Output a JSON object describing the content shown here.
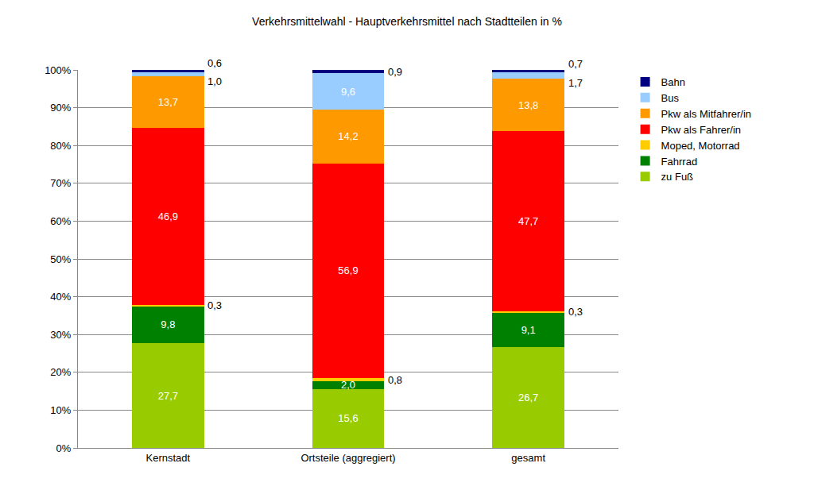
{
  "chart_data": {
    "type": "bar",
    "title": "Verkehrsmittelwahl - Hauptverkehrsmittel nach Stadtteilen in %",
    "categories": [
      "Kernstadt",
      "Ortsteile (aggregiert)",
      "gesamt"
    ],
    "stacked": true,
    "data_labels": true,
    "grid": true,
    "legend": "right",
    "ylim": [
      0,
      100
    ],
    "yticks": [
      {
        "value": 0,
        "label": "0%"
      },
      {
        "value": 10,
        "label": "10%"
      },
      {
        "value": 20,
        "label": "20%"
      },
      {
        "value": 30,
        "label": "30%"
      },
      {
        "value": 40,
        "label": "40%"
      },
      {
        "value": 50,
        "label": "50%"
      },
      {
        "value": 60,
        "label": "60%"
      },
      {
        "value": 70,
        "label": "70%"
      },
      {
        "value": 80,
        "label": "80%"
      },
      {
        "value": 90,
        "label": "90%"
      },
      {
        "value": 100,
        "label": "100%"
      }
    ],
    "series": [
      {
        "name": "zu Fuß",
        "color": "#99cc00",
        "values": [
          27.7,
          15.6,
          26.7
        ],
        "value_labels": [
          "27,7",
          "15,6",
          "26,7"
        ]
      },
      {
        "name": "Fahrrad",
        "color": "#008000",
        "values": [
          9.8,
          2.0,
          9.1
        ],
        "value_labels": [
          "9,8",
          "2,0",
          "9,1"
        ]
      },
      {
        "name": "Moped, Motorrad",
        "color": "#ffcc00",
        "values": [
          0.3,
          0.8,
          0.3
        ],
        "value_labels": [
          "0,3",
          "0,8",
          "0,3"
        ]
      },
      {
        "name": "Pkw als Fahrer/in",
        "color": "#ff0000",
        "values": [
          46.9,
          56.9,
          47.7
        ],
        "value_labels": [
          "46,9",
          "56,9",
          "47,7"
        ]
      },
      {
        "name": "Pkw als Mitfahrer/in",
        "color": "#ff9900",
        "values": [
          13.7,
          14.2,
          13.8
        ],
        "value_labels": [
          "13,7",
          "14,2",
          "13,8"
        ]
      },
      {
        "name": "Bus",
        "color": "#99ccff",
        "values": [
          1.0,
          9.6,
          1.7
        ],
        "value_labels": [
          "1,0",
          "9,6",
          "1,7"
        ]
      },
      {
        "name": "Bahn",
        "color": "#000080",
        "values": [
          0.6,
          0.9,
          0.7
        ],
        "value_labels": [
          "0,6",
          "0,9",
          "0,7"
        ]
      }
    ]
  }
}
